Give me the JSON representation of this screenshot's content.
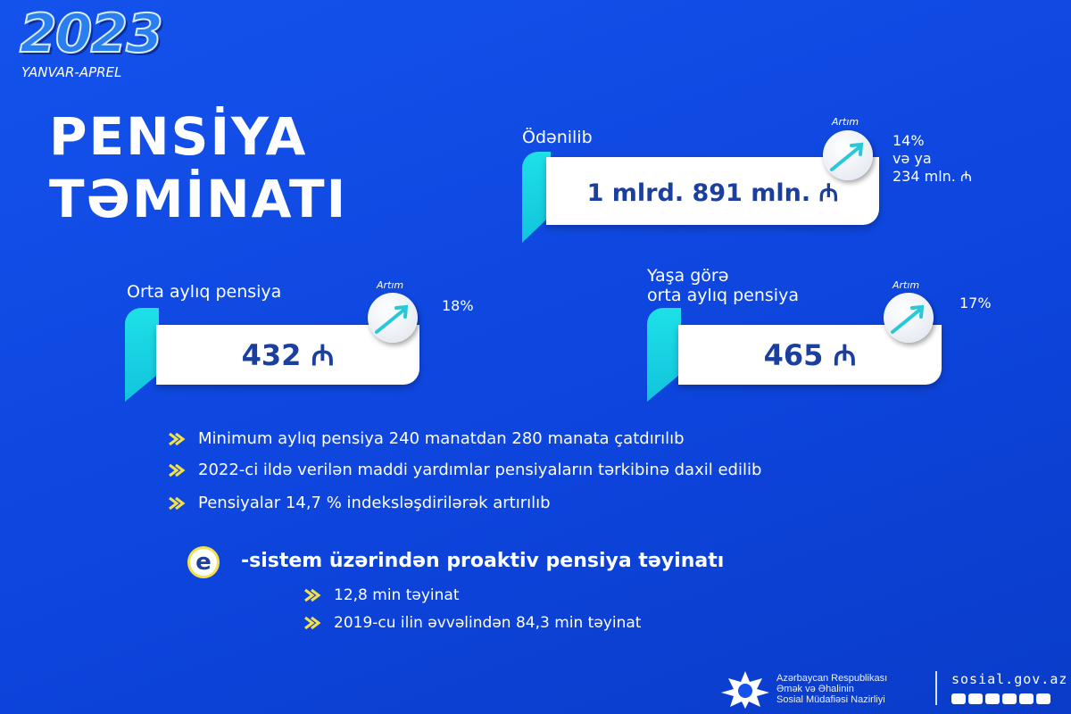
{
  "header": {
    "year": "2023",
    "period": "YANVAR-APREL",
    "title_line1": "PENSİYA",
    "title_line2": "TƏMİNATI"
  },
  "paid": {
    "label": "Ödənilib",
    "value": "1 mlrd. 891 mln. ₼",
    "growth_label": "Artım",
    "growth": [
      "14%",
      "və ya",
      "234 mln. ₼"
    ]
  },
  "avg_pension": {
    "label": "Orta aylıq pensiya",
    "value": "432 ₼",
    "growth_label": "Artım",
    "growth": "18%"
  },
  "age_pension": {
    "label_line1": "Yaşa görə",
    "label_line2": "orta aylıq pensiya",
    "value": "465 ₼",
    "growth_label": "Artım",
    "growth": "17%"
  },
  "bullets": [
    "Minimum aylıq pensiya 240 manatdan 280 manata çatdırılıb",
    "2022-ci ildə verilən maddi yardımlar pensiyaların tərkibinə daxil edilib",
    "Pensiyalar 14,7 % indeksləşdirilərək artırılıb"
  ],
  "esystem": {
    "icon_letter": "e",
    "title": "-sistem üzərindən proaktiv pensiya təyinatı",
    "items": [
      "12,8 min təyinat",
      "2019-cu ilin əvvəlindən 84,3 min təyinat"
    ]
  },
  "footer": {
    "org_lines": [
      "Azərbaycan Respublikası",
      "Əmək və Əhalinin",
      "Sosial Müdafiəsi Nazirliyi"
    ],
    "website": "sosial.gov.az",
    "social_icons": [
      "facebook-icon",
      "instagram-icon",
      "telegram-icon",
      "twitter-icon",
      "youtube-icon",
      "linkedin-icon"
    ]
  },
  "colors": {
    "background": "#0d44dc",
    "accent_cyan": "#1ee0e8",
    "value_text": "#1b3f9e",
    "bullet_arrow": "#f4e04a"
  }
}
